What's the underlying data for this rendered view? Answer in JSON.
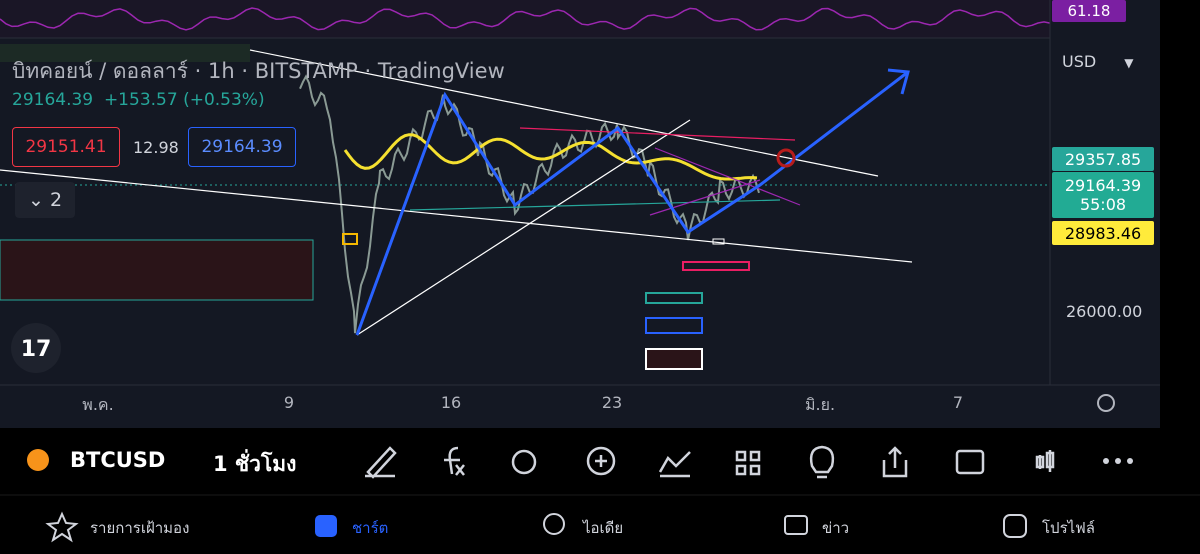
{
  "header": {
    "symbol_name": "บิทคอยน์ / ดอลลาร์",
    "interval": "1h",
    "exchange": "BITSTAMP",
    "source": "TradingView",
    "last_price": "29164.39",
    "change": "+153.57 (+0.53%)"
  },
  "trade": {
    "sell": "29151.41",
    "spread": "12.98",
    "buy": "29164.39"
  },
  "indicators": {
    "count": "2"
  },
  "price_axis": {
    "indicator_value": "61.18",
    "currency": "USD",
    "line_price": "29357.85",
    "last_price": "29164.39",
    "countdown": "55:08",
    "low_price": "28983.46",
    "level": "26000.00"
  },
  "time_axis": [
    "พ.ค.",
    "9",
    "16",
    "23",
    "มิ.ย.",
    "7"
  ],
  "toolbar": {
    "symbol": "BTCUSD",
    "interval": "1 ชั่วโมง"
  },
  "nav": [
    "รายการเฝ้ามอง",
    "ชาร์ต",
    "ไอเดีย",
    "ข่าว",
    "โปรไฟล์"
  ]
}
